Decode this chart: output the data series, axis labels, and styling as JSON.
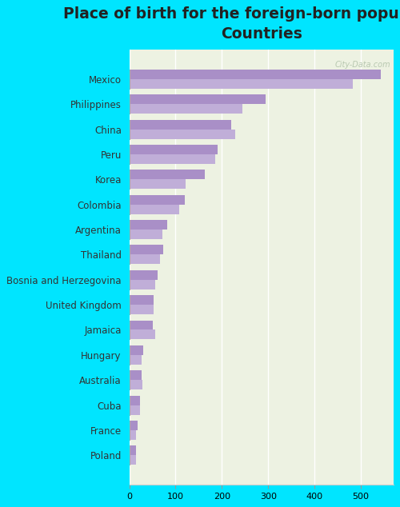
{
  "title": "Place of birth for the foreign-born population -\nCountries",
  "categories": [
    "Mexico",
    "Philippines",
    "China",
    "Peru",
    "Korea",
    "Colombia",
    "Argentina",
    "Thailand",
    "Bosnia and Herzegovina",
    "United Kingdom",
    "Jamaica",
    "Hungary",
    "Australia",
    "Cuba",
    "France",
    "Poland"
  ],
  "bar1_values": [
    543,
    295,
    220,
    190,
    163,
    120,
    82,
    73,
    62,
    52,
    50,
    30,
    27,
    24,
    18,
    15
  ],
  "bar2_values": [
    483,
    245,
    228,
    185,
    122,
    107,
    72,
    66,
    56,
    52,
    56,
    26,
    29,
    23,
    15,
    14
  ],
  "bar_color1": "#a98fc7",
  "bar_color2": "#c0aed8",
  "fig_bg_color": "#00e5ff",
  "plot_bg_color": "#edf2e2",
  "xlim": [
    0,
    570
  ],
  "xticks": [
    0,
    100,
    200,
    300,
    400,
    500
  ],
  "bar_height": 0.38,
  "title_fontsize": 13.5,
  "label_fontsize": 8.5,
  "tick_fontsize": 8,
  "watermark": "City-Data.com"
}
